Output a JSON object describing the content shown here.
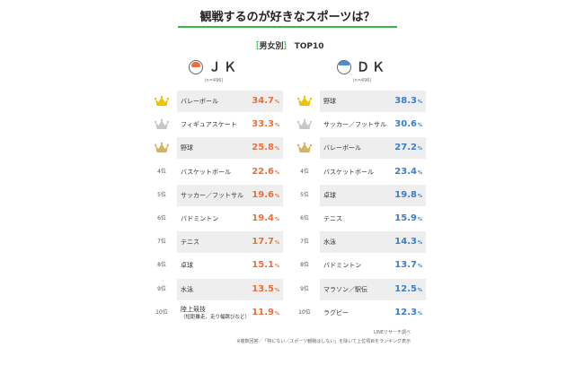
{
  "title": "観戦するのが好きなスポーツは？",
  "subtitle_bracket_open": "［",
  "subtitle_label": "男女別",
  "subtitle_bracket_close": "］",
  "subtitle_top": "TOP10",
  "percent_unit": "%",
  "colors": {
    "accent_green": "#3cb54a",
    "jk_orange": "#e8703c",
    "dk_blue": "#3d7ec7",
    "crown_gold": "#f2c200",
    "crown_silver": "#c8c8c8",
    "crown_bronze": "#d9b25f",
    "row_shade": "#eeeeee"
  },
  "groups": {
    "jk": {
      "name": "ＪＫ",
      "n": "(n=496)",
      "icon": "girl-avatar-icon"
    },
    "dk": {
      "name": "ＤＫ",
      "n": "(n=496)",
      "icon": "boy-avatar-icon"
    }
  },
  "rank_labels": [
    "",
    "",
    "",
    "4位",
    "5位",
    "6位",
    "7位",
    "8位",
    "9位",
    "10位"
  ],
  "chart_data": [
    {
      "type": "table",
      "group": "ＪＫ",
      "categories": [
        "バレーボール",
        "フィギュアスケート",
        "野球",
        "バスケットボール",
        "サッカー／フットサル",
        "バドミントン",
        "テニス",
        "卓球",
        "水泳",
        "陸上競技"
      ],
      "category_notes": [
        "",
        "",
        "",
        "",
        "",
        "",
        "",
        "",
        "",
        "（短距離走、走り幅跳びなど）"
      ],
      "values": [
        34.7,
        33.3,
        25.8,
        22.6,
        19.6,
        19.4,
        17.7,
        15.1,
        13.5,
        11.9
      ],
      "value_labels": [
        "34.7",
        "33.3",
        "25.8",
        "22.6",
        "19.6",
        "19.4",
        "17.7",
        "15.1",
        "13.5",
        "11.9"
      ]
    },
    {
      "type": "table",
      "group": "ＤＫ",
      "categories": [
        "野球",
        "サッカー／フットサル",
        "バレーボール",
        "バスケットボール",
        "卓球",
        "テニス",
        "水泳",
        "バドミントン",
        "マラソン／駅伝",
        "ラグビー"
      ],
      "category_notes": [
        "",
        "",
        "",
        "",
        "",
        "",
        "",
        "",
        "",
        ""
      ],
      "values": [
        38.3,
        30.6,
        27.2,
        23.4,
        19.8,
        15.9,
        14.3,
        13.7,
        12.5,
        12.3
      ],
      "value_labels": [
        "38.3",
        "30.6",
        "27.2",
        "23.4",
        "19.8",
        "15.9",
        "14.3",
        "13.7",
        "12.5",
        "12.3"
      ]
    }
  ],
  "source": "LINEリサーチ調べ",
  "note": "※複数回答／「特にない／スポーツ観戦はしない」を除いて上位項目をランキング表示"
}
